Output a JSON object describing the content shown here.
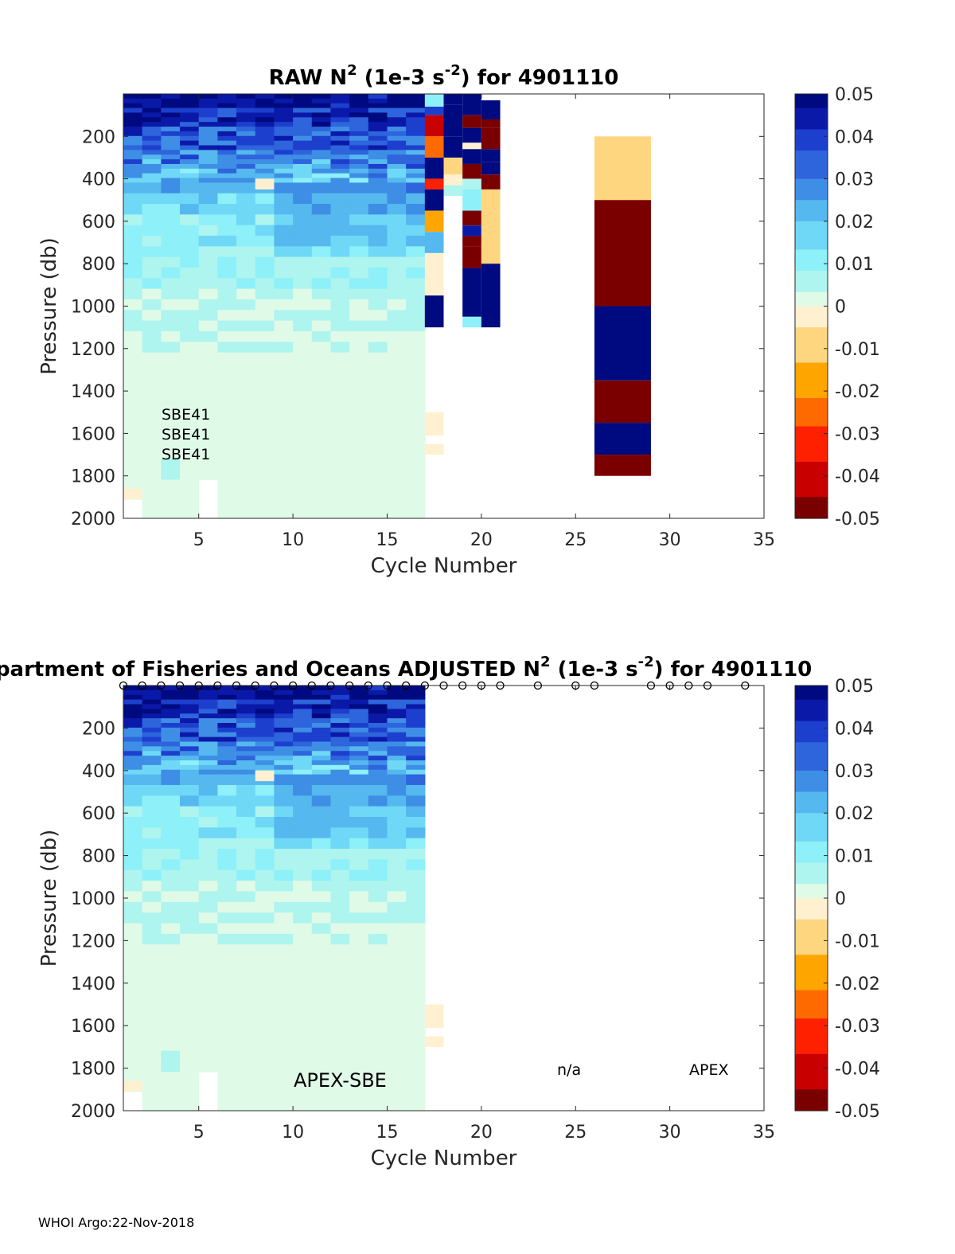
{
  "footer": "WHOI Argo:22-Nov-2018",
  "colors": {
    "background_profile": "#e0fae8",
    "positive_scale": [
      "#e0fae8",
      "#aef4ef",
      "#8ef0f8",
      "#6fd8f6",
      "#55b8ef",
      "#3e8ee6",
      "#2e64dc",
      "#1d3fce",
      "#0b19a8",
      "#000a80"
    ],
    "negative_scale": [
      "#fff0d0",
      "#ffd680",
      "#ffa500",
      "#ff6a00",
      "#ff2000",
      "#c80000",
      "#7a0000"
    ]
  },
  "chart_data": [
    {
      "type": "heatmap",
      "title_prefix": "RAW N",
      "title_units": " (1e-3 s",
      "title_suffix": ") for 4901110",
      "xlabel": "Cycle Number",
      "ylabel": "Pressure (db)",
      "xlim": [
        1,
        35
      ],
      "ylim": [
        0,
        2000
      ],
      "xticks": [
        "5",
        "10",
        "15",
        "20",
        "25",
        "30",
        "35"
      ],
      "yticks": [
        "200",
        "400",
        "600",
        "800",
        "1000",
        "1200",
        "1400",
        "1600",
        "1800",
        "2000"
      ],
      "colorbar": {
        "range": [
          -0.05,
          0.05
        ],
        "ticks": [
          "0.05",
          "0.04",
          "0.03",
          "0.02",
          "0.01",
          "0",
          "-0.01",
          "-0.02",
          "-0.03",
          "-0.04",
          "-0.05"
        ]
      },
      "sensor_labels": [
        "SBE41",
        "SBE41",
        "SBE41"
      ],
      "profiled_cycles": [
        1,
        16
      ],
      "anomaly_cells": [
        {
          "cycle": 17,
          "p0": 1500,
          "p1": 1550,
          "value": -0.002
        },
        {
          "cycle": 17,
          "p0": 1550,
          "p1": 1610,
          "value": -0.004
        },
        {
          "cycle": 17,
          "p0": 1650,
          "p1": 1700,
          "value": -0.004
        },
        {
          "cycle": 1,
          "p0": 1860,
          "p1": 1910,
          "value": -0.004
        },
        {
          "cycle": 8,
          "p0": 400,
          "p1": 450,
          "value": -0.004
        }
      ],
      "sparse_cells": [
        {
          "cycle": 17,
          "p0": 0,
          "p1": 60,
          "value": 0.01
        },
        {
          "cycle": 17,
          "p0": 60,
          "p1": 100,
          "value": 0.04
        },
        {
          "cycle": 17,
          "p0": 100,
          "p1": 200,
          "value": -0.045
        },
        {
          "cycle": 17,
          "p0": 200,
          "p1": 300,
          "value": -0.025
        },
        {
          "cycle": 17,
          "p0": 300,
          "p1": 400,
          "value": 0.05
        },
        {
          "cycle": 17,
          "p0": 400,
          "p1": 450,
          "value": -0.035
        },
        {
          "cycle": 17,
          "p0": 450,
          "p1": 550,
          "value": 0.05
        },
        {
          "cycle": 17,
          "p0": 550,
          "p1": 650,
          "value": -0.02
        },
        {
          "cycle": 17,
          "p0": 650,
          "p1": 750,
          "value": 0.02
        },
        {
          "cycle": 17,
          "p0": 750,
          "p1": 950,
          "value": -0.004
        },
        {
          "cycle": 17,
          "p0": 950,
          "p1": 1100,
          "value": 0.05
        },
        {
          "cycle": 18,
          "p0": 0,
          "p1": 50,
          "value": 0.05
        },
        {
          "cycle": 18,
          "p0": 50,
          "p1": 200,
          "value": 0.05
        },
        {
          "cycle": 18,
          "p0": 200,
          "p1": 300,
          "value": 0.05
        },
        {
          "cycle": 18,
          "p0": 300,
          "p1": 380,
          "value": -0.006
        },
        {
          "cycle": 18,
          "p0": 380,
          "p1": 430,
          "value": -0.003
        },
        {
          "cycle": 18,
          "p0": 430,
          "p1": 480,
          "value": 0.003
        },
        {
          "cycle": 19,
          "p0": 0,
          "p1": 100,
          "value": 0.05
        },
        {
          "cycle": 19,
          "p0": 100,
          "p1": 160,
          "value": -0.05
        },
        {
          "cycle": 19,
          "p0": 160,
          "p1": 230,
          "value": 0.05
        },
        {
          "cycle": 19,
          "p0": 230,
          "p1": 260,
          "value": -0.003
        },
        {
          "cycle": 19,
          "p0": 260,
          "p1": 330,
          "value": 0.05
        },
        {
          "cycle": 19,
          "p0": 330,
          "p1": 400,
          "value": -0.05
        },
        {
          "cycle": 19,
          "p0": 400,
          "p1": 450,
          "value": 0.003
        },
        {
          "cycle": 19,
          "p0": 450,
          "p1": 550,
          "value": 0.01
        },
        {
          "cycle": 19,
          "p0": 550,
          "p1": 620,
          "value": -0.05
        },
        {
          "cycle": 19,
          "p0": 620,
          "p1": 670,
          "value": 0.045
        },
        {
          "cycle": 19,
          "p0": 670,
          "p1": 720,
          "value": -0.05
        },
        {
          "cycle": 19,
          "p0": 720,
          "p1": 820,
          "value": -0.05
        },
        {
          "cycle": 19,
          "p0": 820,
          "p1": 1000,
          "value": 0.05
        },
        {
          "cycle": 19,
          "p0": 1000,
          "p1": 1050,
          "value": 0.05
        },
        {
          "cycle": 19,
          "p0": 1050,
          "p1": 1100,
          "value": 0.01
        },
        {
          "cycle": 20,
          "p0": 30,
          "p1": 120,
          "value": 0.05
        },
        {
          "cycle": 20,
          "p0": 120,
          "p1": 160,
          "value": -0.05
        },
        {
          "cycle": 20,
          "p0": 160,
          "p1": 260,
          "value": -0.05
        },
        {
          "cycle": 20,
          "p0": 260,
          "p1": 320,
          "value": 0.05
        },
        {
          "cycle": 20,
          "p0": 320,
          "p1": 380,
          "value": 0.05
        },
        {
          "cycle": 20,
          "p0": 380,
          "p1": 450,
          "value": -0.05
        },
        {
          "cycle": 20,
          "p0": 450,
          "p1": 550,
          "value": -0.012
        },
        {
          "cycle": 20,
          "p0": 550,
          "p1": 800,
          "value": -0.012
        },
        {
          "cycle": 20,
          "p0": 800,
          "p1": 1100,
          "value": 0.05
        },
        {
          "cycle": 26,
          "p0": 200,
          "p1": 500,
          "value": -0.012
        },
        {
          "cycle": 26,
          "p0": 500,
          "p1": 1000,
          "value": -0.05
        },
        {
          "cycle": 26,
          "p0": 1000,
          "p1": 1350,
          "value": 0.05
        },
        {
          "cycle": 26,
          "p0": 1350,
          "p1": 1550,
          "value": -0.05
        },
        {
          "cycle": 26,
          "p0": 1550,
          "p1": 1700,
          "value": 0.05
        },
        {
          "cycle": 26,
          "p0": 1700,
          "p1": 1800,
          "value": -0.05
        }
      ]
    },
    {
      "type": "heatmap",
      "title_prefix": "Department of Fisheries and Oceans  ADJUSTED N",
      "title_units": " (1e-3 s",
      "title_suffix": ") for 4901110",
      "xlabel": "Cycle Number",
      "ylabel": "Pressure (db)",
      "xlim": [
        1,
        35
      ],
      "ylim": [
        0,
        2000
      ],
      "xticks": [
        "5",
        "10",
        "15",
        "20",
        "25",
        "30",
        "35"
      ],
      "yticks": [
        "200",
        "400",
        "600",
        "800",
        "1000",
        "1200",
        "1400",
        "1600",
        "1800",
        "2000"
      ],
      "colorbar": {
        "range": [
          -0.05,
          0.05
        ],
        "ticks": [
          "0.05",
          "0.04",
          "0.03",
          "0.02",
          "0.01",
          "0",
          "-0.01",
          "-0.02",
          "-0.03",
          "-0.04",
          "-0.05"
        ]
      },
      "profiled_cycles": [
        1,
        16
      ],
      "cycle_markers": [
        1,
        2,
        3,
        4,
        5,
        6,
        7,
        8,
        9,
        10,
        11,
        12,
        13,
        14,
        15,
        16,
        17,
        18,
        19,
        20,
        21,
        23,
        25,
        26,
        29,
        30,
        31,
        32,
        34
      ],
      "annotations": [
        "APEX-SBE",
        "n/a",
        "APEX"
      ],
      "anomaly_cells": [
        {
          "cycle": 17,
          "p0": 1500,
          "p1": 1550,
          "value": -0.002
        },
        {
          "cycle": 17,
          "p0": 1550,
          "p1": 1610,
          "value": -0.004
        },
        {
          "cycle": 17,
          "p0": 1650,
          "p1": 1700,
          "value": -0.004
        },
        {
          "cycle": 1,
          "p0": 1860,
          "p1": 1910,
          "value": -0.004
        },
        {
          "cycle": 8,
          "p0": 400,
          "p1": 450,
          "value": -0.004
        }
      ]
    }
  ]
}
